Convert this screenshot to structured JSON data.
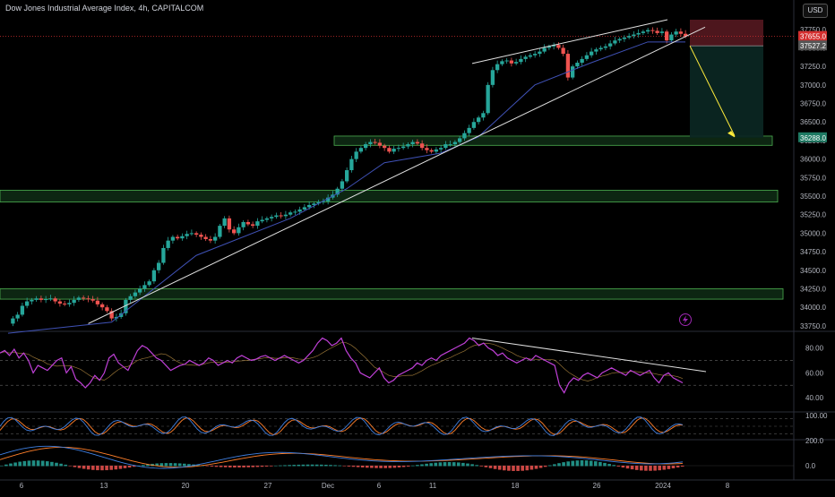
{
  "header": {
    "title": "Dow Jones Industrial Average Index, 4h, CAPITALCOM",
    "currency": "USD"
  },
  "colors": {
    "background": "#000000",
    "up": "#26a69a",
    "down": "#ef5350",
    "ma": "#3f51b5",
    "trendline": "#e0e0e0",
    "zone_fill": "#0e2a14",
    "zone_border": "#4caf50",
    "stop_zone": "#5a1a22",
    "target_zone": "#0b2622",
    "arrow": "#ffeb3b",
    "rsi": "#c040d8",
    "rsi_ma": "#d4a24c",
    "stoch_k": "#3f7fe0",
    "stoch_d": "#ff7f2a",
    "macd": "#3f7fe0",
    "signal": "#ff7f2a",
    "price_line": "#d32f2f",
    "bolt_icon": "#9c27b0"
  },
  "chart_data": [
    {
      "type": "candlestick",
      "title": "Dow Jones Industrial Average Index, 4h, CAPITALCOM",
      "x_labels": [
        "6",
        "13",
        "20",
        "27",
        "Dec",
        "6",
        "11",
        "18",
        "26",
        "2024",
        "8"
      ],
      "y_ticks": [
        33750,
        34000,
        34250,
        34500,
        34750,
        35000,
        35250,
        35500,
        35750,
        36000,
        36250,
        36500,
        36750,
        37000,
        37250,
        37500,
        37750
      ],
      "ylim": [
        33700,
        37880
      ],
      "close_path": [
        [
          0,
          33780
        ],
        [
          1,
          33850
        ],
        [
          2,
          33900
        ],
        [
          3,
          34020
        ],
        [
          4,
          34080
        ],
        [
          5,
          34100
        ],
        [
          6,
          34120
        ],
        [
          7,
          34100
        ],
        [
          8,
          34110
        ],
        [
          9,
          34120
        ],
        [
          10,
          34080
        ],
        [
          11,
          34050
        ],
        [
          12,
          34040
        ],
        [
          13,
          34060
        ],
        [
          14,
          34100
        ],
        [
          15,
          34130
        ],
        [
          16,
          34120
        ],
        [
          17,
          34110
        ],
        [
          18,
          34090
        ],
        [
          19,
          34040
        ],
        [
          20,
          34000
        ],
        [
          21,
          33950
        ],
        [
          22,
          33850
        ],
        [
          23,
          33870
        ],
        [
          24,
          33920
        ],
        [
          25,
          34100
        ],
        [
          26,
          34150
        ],
        [
          27,
          34200
        ],
        [
          28,
          34250
        ],
        [
          29,
          34300
        ],
        [
          30,
          34350
        ],
        [
          31,
          34500
        ],
        [
          32,
          34600
        ],
        [
          33,
          34800
        ],
        [
          34,
          34900
        ],
        [
          35,
          34950
        ],
        [
          36,
          34930
        ],
        [
          37,
          34960
        ],
        [
          38,
          34990
        ],
        [
          39,
          35000
        ],
        [
          40,
          34980
        ],
        [
          41,
          34950
        ],
        [
          42,
          34920
        ],
        [
          43,
          34900
        ],
        [
          44,
          34950
        ],
        [
          45,
          35100
        ],
        [
          46,
          35200
        ],
        [
          47,
          35050
        ],
        [
          48,
          35000
        ],
        [
          49,
          35080
        ],
        [
          50,
          35150
        ],
        [
          51,
          35120
        ],
        [
          52,
          35100
        ],
        [
          53,
          35160
        ],
        [
          54,
          35180
        ],
        [
          55,
          35200
        ],
        [
          56,
          35220
        ],
        [
          57,
          35240
        ],
        [
          58,
          35230
        ],
        [
          59,
          35250
        ],
        [
          60,
          35280
        ],
        [
          61,
          35290
        ],
        [
          62,
          35320
        ],
        [
          63,
          35350
        ],
        [
          64,
          35380
        ],
        [
          65,
          35400
        ],
        [
          66,
          35420
        ],
        [
          67,
          35430
        ],
        [
          68,
          35480
        ],
        [
          69,
          35520
        ],
        [
          70,
          35600
        ],
        [
          71,
          35700
        ],
        [
          72,
          35850
        ],
        [
          73,
          36000
        ],
        [
          74,
          36100
        ],
        [
          75,
          36150
        ],
        [
          76,
          36200
        ],
        [
          77,
          36230
        ],
        [
          78,
          36220
        ],
        [
          79,
          36180
        ],
        [
          80,
          36150
        ],
        [
          81,
          36100
        ],
        [
          82,
          36140
        ],
        [
          83,
          36150
        ],
        [
          84,
          36170
        ],
        [
          85,
          36200
        ],
        [
          86,
          36230
        ],
        [
          87,
          36210
        ],
        [
          88,
          36150
        ],
        [
          89,
          36120
        ],
        [
          90,
          36100
        ],
        [
          91,
          36130
        ],
        [
          92,
          36150
        ],
        [
          93,
          36200
        ],
        [
          94,
          36200
        ],
        [
          95,
          36230
        ],
        [
          96,
          36280
        ],
        [
          97,
          36350
        ],
        [
          98,
          36420
        ],
        [
          99,
          36500
        ],
        [
          100,
          36560
        ],
        [
          101,
          36620
        ],
        [
          102,
          37000
        ],
        [
          103,
          37200
        ],
        [
          104,
          37280
        ],
        [
          105,
          37320
        ],
        [
          106,
          37330
        ],
        [
          107,
          37290
        ],
        [
          108,
          37310
        ],
        [
          109,
          37350
        ],
        [
          110,
          37380
        ],
        [
          111,
          37400
        ],
        [
          112,
          37420
        ],
        [
          113,
          37450
        ],
        [
          114,
          37500
        ],
        [
          115,
          37520
        ],
        [
          116,
          37540
        ],
        [
          117,
          37500
        ],
        [
          118,
          37420
        ],
        [
          119,
          37100
        ],
        [
          120,
          37250
        ],
        [
          121,
          37300
        ],
        [
          122,
          37350
        ],
        [
          123,
          37400
        ],
        [
          124,
          37450
        ],
        [
          125,
          37480
        ],
        [
          126,
          37500
        ],
        [
          127,
          37520
        ],
        [
          128,
          37560
        ],
        [
          129,
          37600
        ],
        [
          130,
          37620
        ],
        [
          131,
          37640
        ],
        [
          132,
          37660
        ],
        [
          133,
          37680
        ],
        [
          134,
          37700
        ],
        [
          135,
          37720
        ],
        [
          136,
          37740
        ],
        [
          137,
          37730
        ],
        [
          138,
          37700
        ],
        [
          139,
          37720
        ],
        [
          140,
          37600
        ],
        [
          141,
          37680
        ],
        [
          142,
          37720
        ],
        [
          143,
          37690
        ],
        [
          144,
          37655
        ]
      ],
      "ma_path": [
        [
          0,
          33650
        ],
        [
          22,
          33800
        ],
        [
          40,
          34700
        ],
        [
          60,
          35200
        ],
        [
          72,
          35600
        ],
        [
          80,
          35950
        ],
        [
          92,
          36080
        ],
        [
          100,
          36300
        ],
        [
          112,
          37000
        ],
        [
          124,
          37300
        ],
        [
          136,
          37580
        ],
        [
          144,
          37580
        ]
      ],
      "ascending_trendline": [
        [
          10,
          33820
        ],
        [
          144,
          37780
        ]
      ],
      "channel_top_line": [
        [
          63,
          37290
        ],
        [
          124,
          37930
        ]
      ],
      "support_zones": [
        [
          36185,
          36310
        ],
        [
          35420,
          35580
        ],
        [
          34110,
          34250
        ]
      ],
      "short_position": {
        "entry": 37527.2,
        "stop": 37880,
        "target": 36288.0
      },
      "price_labels": [
        {
          "text": "37750.0",
          "value": 37750,
          "kind": "tick"
        },
        {
          "text": "37655.0",
          "value": 37655,
          "kind": "last-price"
        },
        {
          "text": "56:35",
          "value": 37600,
          "kind": "countdown"
        },
        {
          "text": "37527.2",
          "value": 37527.2,
          "kind": "entry"
        },
        {
          "text": "36288.0",
          "value": 36288.0,
          "kind": "target"
        }
      ]
    },
    {
      "type": "line",
      "name_hint": "rsi",
      "y_ticks": [
        40,
        60,
        80
      ],
      "y_tick_labels": [
        "40.00",
        "60.00",
        "80.00"
      ],
      "ylim": [
        30,
        92
      ],
      "bands": [
        70,
        50
      ],
      "values": [
        76,
        78,
        74,
        79,
        72,
        76,
        70,
        60,
        66,
        64,
        62,
        66,
        70,
        72,
        60,
        65,
        55,
        52,
        48,
        52,
        58,
        54,
        60,
        72,
        75,
        68,
        65,
        62,
        70,
        78,
        82,
        80,
        76,
        72,
        70,
        66,
        62,
        64,
        66,
        67,
        70,
        68,
        66,
        68,
        72,
        70,
        66,
        68,
        70,
        68,
        72,
        74,
        72,
        70,
        71,
        73,
        74,
        72,
        70,
        72,
        74,
        72,
        70,
        68,
        70,
        74,
        78,
        84,
        88,
        86,
        82,
        84,
        88,
        78,
        72,
        68,
        60,
        58,
        56,
        60,
        64,
        56,
        52,
        54,
        58,
        60,
        62,
        64,
        68,
        66,
        70,
        72,
        70,
        74,
        76,
        78,
        80,
        82,
        84,
        88,
        86,
        82,
        84,
        80,
        78,
        74,
        76,
        72,
        70,
        68,
        70,
        72,
        70,
        74,
        72,
        70,
        68,
        66,
        50,
        44,
        52,
        56,
        54,
        58,
        60,
        58,
        56,
        60,
        62,
        64,
        62,
        60,
        58,
        62,
        60,
        58,
        60,
        62,
        56,
        52,
        58,
        60,
        56,
        54,
        52
      ],
      "trendline": [
        [
          120,
          88
        ],
        [
          180,
          61
        ]
      ]
    },
    {
      "type": "line",
      "name_hint": "stochastic",
      "y_ticks": [
        100
      ],
      "y_tick_labels": [
        "100.00"
      ]
    },
    {
      "type": "bar",
      "name_hint": "macd",
      "y_ticks": [
        0,
        200
      ],
      "y_tick_labels": [
        "0.0",
        "200.0"
      ]
    }
  ],
  "icons": {
    "bolt": "bolt-icon"
  }
}
